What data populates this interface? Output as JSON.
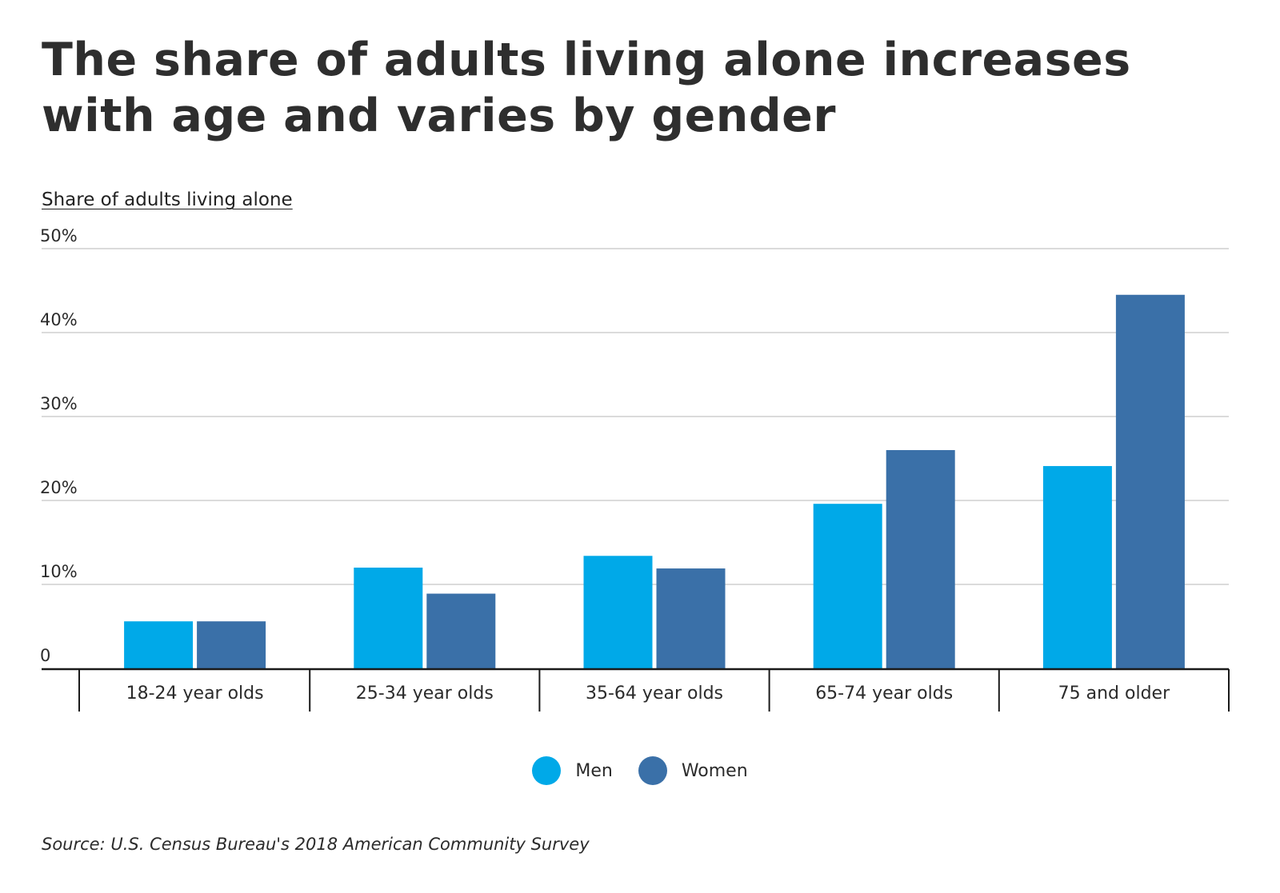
{
  "title": "The share of adults living alone increases with age and varies by gender",
  "source": "Source:  U.S. Census Bureau's 2018 American Community Survey",
  "chart_data": {
    "type": "bar",
    "title": "The share of adults living alone increases with age and varies by gender",
    "ylabel": "Share of adults living alone",
    "xlabel": "",
    "categories": [
      "18-24 year olds",
      "25-34 year olds",
      "35-64 year olds",
      "65-74 year olds",
      "75 and older"
    ],
    "series": [
      {
        "name": "Men",
        "color": "#00a9e8",
        "values": [
          5.6,
          12.0,
          13.4,
          19.6,
          24.1
        ]
      },
      {
        "name": "Women",
        "color": "#3a70a8",
        "values": [
          5.6,
          8.9,
          11.9,
          26.0,
          44.5
        ]
      }
    ],
    "ylim": [
      0,
      50
    ],
    "yticks": [
      0,
      10,
      20,
      30,
      40,
      50
    ],
    "ytick_labels": [
      "0",
      "10%",
      "20%",
      "30%",
      "40%",
      "50%"
    ],
    "grid": true,
    "legend_position": "bottom-center"
  }
}
